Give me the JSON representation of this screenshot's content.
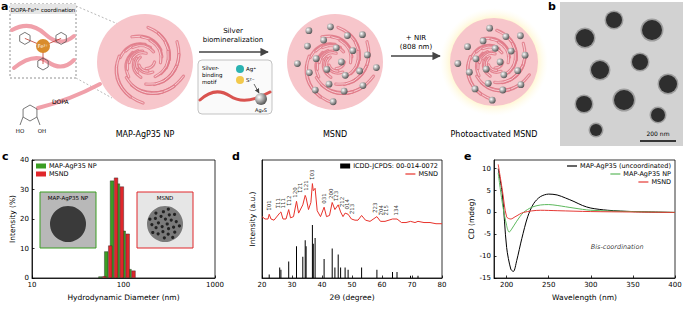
{
  "panels": {
    "a": {
      "letter": "a",
      "inset_title": "DOPA-Fe³⁺ coordination",
      "inset_center": "Fe³⁺",
      "inset_molecule": "DOPA",
      "dopa_groups": [
        "HO",
        "OH"
      ],
      "step1": [
        "Silver",
        "biomineralization"
      ],
      "motif": [
        "Silver-",
        "binding",
        "motif"
      ],
      "ions": [
        "Ag⁺",
        "S²⁻"
      ],
      "product": "Ag₂S",
      "step2": [
        "+ NIR",
        "(808 nm)"
      ],
      "particles": [
        "MAP-AgP35 NP",
        "MSND",
        "Photoactivated MSND"
      ]
    },
    "b": {
      "letter": "b",
      "scale_bar": "200 nm"
    }
  },
  "chart_data": [
    {
      "panel": "c",
      "type": "bar",
      "xlabel": "Hydrodynamic Diameter (nm)",
      "ylabel": "Intensity (%)",
      "log": "x",
      "grid": false,
      "legend": "upper left",
      "x": [
        58.8,
        68.1,
        78.8,
        91.3,
        105.7,
        122.4
      ],
      "series": [
        {
          "name": "MAP-AgP35 NP",
          "color": "#3a9d23",
          "values": [
            0.5,
            9,
            33,
            32,
            16,
            3
          ]
        },
        {
          "name": "MSND",
          "color": "#e0262b",
          "values": [
            0.6,
            11,
            34,
            31,
            15,
            2.5
          ]
        }
      ],
      "xlim": [
        10,
        1000
      ],
      "xticks": [
        10,
        100,
        1000
      ],
      "ylim": [
        0,
        40
      ],
      "yticks": [
        0,
        10,
        20,
        30,
        40
      ],
      "inset_labels": [
        "MAP-AgP35 NP",
        "MSND"
      ]
    },
    {
      "panel": "d",
      "type": "line",
      "xlabel": "2Θ (degree)",
      "ylabel": "Intensity (a.u.)",
      "grid": false,
      "legend": "upper right",
      "tick_labels": "x",
      "xlim": [
        20,
        80
      ],
      "xticks": [
        20,
        30,
        40,
        50,
        60,
        70,
        80
      ],
      "ylim": [
        0,
        100
      ],
      "series": [
        {
          "name": "ICDD-JCPDS: 00-014-0072",
          "color": "#000000",
          "type": "bar",
          "x": [
            22.4,
            25.9,
            26.3,
            28.9,
            31.5,
            33.6,
            34.4,
            34.7,
            36.8,
            37.1,
            37.7,
            40.7,
            43.4,
            44.3,
            45.4,
            46.2,
            47.7,
            48.7,
            53.2,
            58.3,
            63.5,
            65.0,
            69.5,
            72.0
          ],
          "values": [
            3,
            9,
            7,
            14,
            27,
            18,
            32,
            27,
            45,
            29,
            34,
            16,
            25,
            9,
            20,
            9,
            9,
            7,
            9,
            7,
            5,
            5,
            2,
            2
          ]
        },
        {
          "name": "MSND",
          "color": "#e8322b",
          "type": "line",
          "x": [
            20,
            21,
            22,
            22.4,
            23,
            24,
            25.9,
            26.3,
            27,
            28,
            28.9,
            29.5,
            30.5,
            31.5,
            32.2,
            33.6,
            34.4,
            34.7,
            35.5,
            36.3,
            36.8,
            37.1,
            37.7,
            38.4,
            39.5,
            40.7,
            41.5,
            42.5,
            43.4,
            44.3,
            45.4,
            46.2,
            47,
            47.7,
            48.7,
            49.8,
            51,
            52,
            53.2,
            54.5,
            56,
            58.3,
            59.5,
            61,
            63.5,
            65,
            66.5,
            68,
            69.5,
            71,
            72,
            74,
            76,
            78,
            80
          ],
          "values": [
            52,
            50,
            50,
            54,
            50,
            49,
            55,
            56,
            50,
            50,
            58,
            51,
            52,
            65,
            55,
            62,
            70,
            68,
            58,
            64,
            80,
            74,
            76,
            57,
            52,
            60,
            52,
            53,
            64,
            58,
            62,
            56,
            52,
            55,
            54,
            50,
            49,
            49,
            53,
            49,
            48,
            52,
            48,
            48,
            50,
            50,
            47,
            47,
            48,
            47,
            48,
            47,
            47,
            46,
            46
          ]
        }
      ],
      "annotations": [
        {
          "text": "1̅01",
          "x": 22.4,
          "y": 57
        },
        {
          "text": "1̅11",
          "x": 25.2,
          "y": 59
        },
        {
          "text": "111",
          "x": 27.0,
          "y": 59
        },
        {
          "text": "1̅12",
          "x": 28.9,
          "y": 61
        },
        {
          "text": "120",
          "x": 30.9,
          "y": 68
        },
        {
          "text": "1̅21",
          "x": 32.8,
          "y": 72
        },
        {
          "text": "121",
          "x": 34.6,
          "y": 74
        },
        {
          "text": "1̅03",
          "x": 36.6,
          "y": 83
        },
        {
          "text": "031",
          "x": 40.7,
          "y": 63
        },
        {
          "text": "200",
          "x": 43.0,
          "y": 67
        },
        {
          "text": "1̅23",
          "x": 44.8,
          "y": 65
        },
        {
          "text": "2̅12",
          "x": 46.5,
          "y": 60
        },
        {
          "text": "014",
          "x": 48.2,
          "y": 58
        },
        {
          "text": "2̅13",
          "x": 50.0,
          "y": 54
        },
        {
          "text": "2̅23",
          "x": 57.8,
          "y": 55
        },
        {
          "text": "2̅04",
          "x": 59.6,
          "y": 53
        },
        {
          "text": "2̅15",
          "x": 61.4,
          "y": 53
        },
        {
          "text": "134",
          "x": 64.8,
          "y": 53
        }
      ]
    },
    {
      "panel": "e",
      "type": "line",
      "xlabel": "Wavelength (nm)",
      "ylabel": "CD (mdeg)",
      "grid": false,
      "legend": "upper right",
      "xlim": [
        185,
        400
      ],
      "xticks": [
        200,
        250,
        300,
        350,
        400
      ],
      "ylim": [
        -15,
        12
      ],
      "yticks": [
        -15,
        -10,
        -5,
        0,
        5,
        10
      ],
      "series": [
        {
          "name": "MAP-AgP35 (uncoordinated)",
          "color": "#000000",
          "x": [
            190,
            195,
            200,
            205,
            208,
            212,
            218,
            225,
            232,
            240,
            250,
            260,
            270,
            280,
            290,
            300,
            320,
            350,
            400
          ],
          "values": [
            10,
            4,
            -8,
            -13,
            -13.5,
            -11,
            -6,
            -1,
            2,
            3.6,
            4.2,
            4,
            3.3,
            2.5,
            1.6,
            1,
            0.5,
            0.2,
            0
          ]
        },
        {
          "name": "MAP-AgP35 NP",
          "color": "#5cb85c",
          "x": [
            190,
            195,
            200,
            203,
            206,
            212,
            220,
            230,
            240,
            250,
            260,
            280,
            300,
            350,
            400
          ],
          "values": [
            9,
            2,
            -3,
            -4.5,
            -3.8,
            -2,
            0,
            1.2,
            1.7,
            1.8,
            1.6,
            1,
            0.5,
            0.2,
            0
          ]
        },
        {
          "name": "MSND",
          "color": "#e53935",
          "x": [
            190,
            195,
            200,
            205,
            210,
            220,
            240,
            260,
            300,
            350,
            400
          ],
          "values": [
            11,
            5,
            -1,
            -1.5,
            -1,
            0,
            0.5,
            0.4,
            0.2,
            0.1,
            0
          ]
        }
      ],
      "annotations": [
        {
          "text": "Bis-coordination",
          "x": 300,
          "y": -8
        }
      ]
    }
  ]
}
